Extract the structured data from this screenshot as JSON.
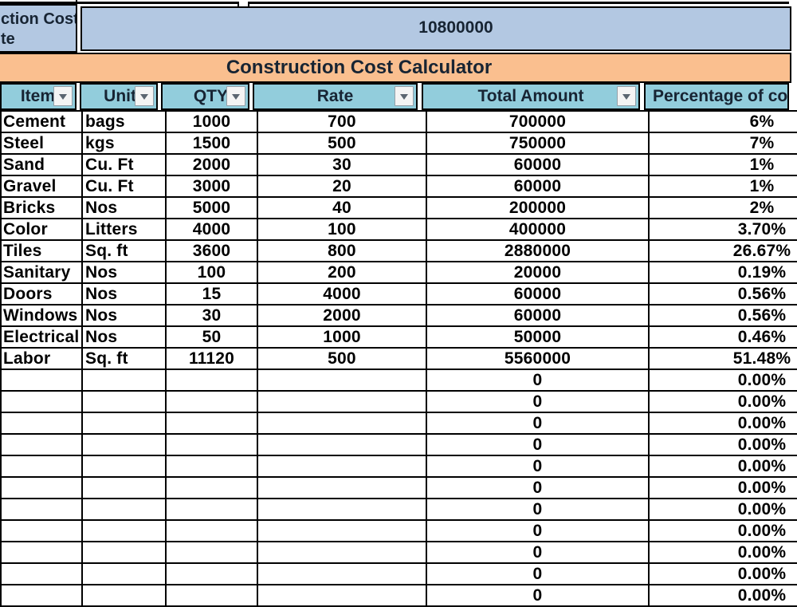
{
  "top_section": {
    "clipped_label_lines": [
      "ction Cost",
      "te"
    ],
    "total_cell_value": "10800000"
  },
  "title_row": {
    "title": "Construction Cost Calculator"
  },
  "table": {
    "headers": [
      {
        "label": "Item",
        "has_filter": true
      },
      {
        "label": "Unit",
        "has_filter": true
      },
      {
        "label": "QTY",
        "has_filter": true
      },
      {
        "label": "Rate",
        "has_filter": true
      },
      {
        "label": "Total Amount",
        "has_filter": true
      },
      {
        "label": "Percentage of cost",
        "has_filter": false
      }
    ],
    "rows": [
      {
        "item": "Cement",
        "unit": "bags",
        "qty": "1000",
        "rate": "700",
        "total": "700000",
        "pct": "6%"
      },
      {
        "item": "Steel",
        "unit": "kgs",
        "qty": "1500",
        "rate": "500",
        "total": "750000",
        "pct": "7%"
      },
      {
        "item": "Sand",
        "unit": "Cu. Ft",
        "qty": "2000",
        "rate": "30",
        "total": "60000",
        "pct": "1%"
      },
      {
        "item": "Gravel",
        "unit": "Cu. Ft",
        "qty": "3000",
        "rate": "20",
        "total": "60000",
        "pct": "1%"
      },
      {
        "item": "Bricks",
        "unit": "Nos",
        "qty": "5000",
        "rate": "40",
        "total": "200000",
        "pct": "2%"
      },
      {
        "item": "Color",
        "unit": "Litters",
        "qty": "4000",
        "rate": "100",
        "total": "400000",
        "pct": "3.70%"
      },
      {
        "item": "Tiles",
        "unit": "Sq. ft",
        "qty": "3600",
        "rate": "800",
        "total": "2880000",
        "pct": "26.67%"
      },
      {
        "item": "Sanitary",
        "unit": "Nos",
        "qty": "100",
        "rate": "200",
        "total": "20000",
        "pct": "0.19%"
      },
      {
        "item": "Doors",
        "unit": "Nos",
        "qty": "15",
        "rate": "4000",
        "total": "60000",
        "pct": "0.56%"
      },
      {
        "item": "Windows",
        "unit": "Nos",
        "qty": "30",
        "rate": "2000",
        "total": "60000",
        "pct": "0.56%"
      },
      {
        "item": "Electrical",
        "unit": "Nos",
        "qty": "50",
        "rate": "1000",
        "total": "50000",
        "pct": "0.46%"
      },
      {
        "item": "Labor",
        "unit": "Sq. ft",
        "qty": "11120",
        "rate": "500",
        "total": "5560000",
        "pct": "51.48%"
      },
      {
        "item": "",
        "unit": "",
        "qty": "",
        "rate": "",
        "total": "0",
        "pct": "0.00%"
      },
      {
        "item": "",
        "unit": "",
        "qty": "",
        "rate": "",
        "total": "0",
        "pct": "0.00%"
      },
      {
        "item": "",
        "unit": "",
        "qty": "",
        "rate": "",
        "total": "0",
        "pct": "0.00%"
      },
      {
        "item": "",
        "unit": "",
        "qty": "",
        "rate": "",
        "total": "0",
        "pct": "0.00%"
      },
      {
        "item": "",
        "unit": "",
        "qty": "",
        "rate": "",
        "total": "0",
        "pct": "0.00%"
      },
      {
        "item": "",
        "unit": "",
        "qty": "",
        "rate": "",
        "total": "0",
        "pct": "0.00%"
      },
      {
        "item": "",
        "unit": "",
        "qty": "",
        "rate": "",
        "total": "0",
        "pct": "0.00%"
      },
      {
        "item": "",
        "unit": "",
        "qty": "",
        "rate": "",
        "total": "0",
        "pct": "0.00%"
      },
      {
        "item": "",
        "unit": "",
        "qty": "",
        "rate": "",
        "total": "0",
        "pct": "0.00%"
      },
      {
        "item": "",
        "unit": "",
        "qty": "",
        "rate": "",
        "total": "0",
        "pct": "0.00%"
      },
      {
        "item": "",
        "unit": "",
        "qty": "",
        "rate": "",
        "total": "0",
        "pct": "0.00%"
      }
    ]
  },
  "colors": {
    "top_cells_fill": "#B3C8E2",
    "banner_fill": "#FABF8F",
    "header_fill": "#92CDDC",
    "grid_border": "#000000",
    "heading_text": "#172433"
  }
}
